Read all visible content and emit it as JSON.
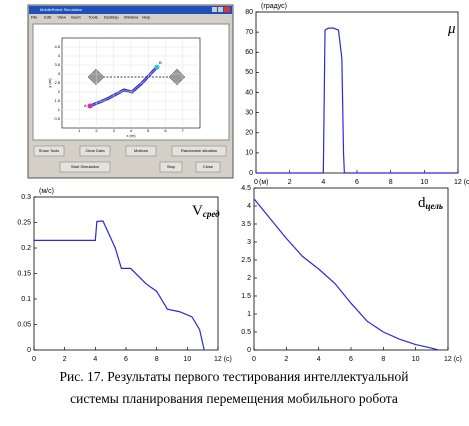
{
  "screenshot": {
    "title": "MobileRobot Simulation",
    "menu": [
      "File",
      "Edit",
      "View",
      "Insert",
      "Tools",
      "Desktop",
      "Window",
      "Help"
    ],
    "plot": {
      "xlabel": "x (m)",
      "ylabel": "y (m)",
      "xticks": [
        "1",
        "2",
        "3",
        "4",
        "5",
        "6",
        "7"
      ],
      "yticks": [
        "0.5",
        "1",
        "1.5",
        "2",
        "2.5",
        "3",
        "3.5",
        "4",
        "4.5"
      ],
      "start": "A",
      "goal": "B"
    },
    "buttons": [
      "Show Tools",
      "Clear Data",
      "Motions",
      "Randomize situation",
      "Start Simulation",
      "Stop",
      "Close"
    ]
  },
  "chart_data": [
    {
      "type": "line",
      "y_label": "(градус)",
      "annotation": "μ",
      "xlim": [
        0,
        12
      ],
      "xticks": [
        0,
        2,
        4,
        6,
        8,
        10,
        {
          "value": 12,
          "label": "12 (с)"
        }
      ],
      "ylim": [
        0,
        80
      ],
      "yticks": [
        0,
        10,
        20,
        30,
        40,
        50,
        60,
        70,
        80
      ],
      "series": [
        {
          "color": "#2a2ad8",
          "x": [
            0,
            4.0,
            4.1,
            4.3,
            4.6,
            4.9,
            5.1,
            5.2,
            5.25,
            12
          ],
          "values": [
            0,
            0,
            71,
            72,
            72,
            71,
            57,
            10,
            0,
            0
          ]
        }
      ]
    },
    {
      "type": "line",
      "y_label": "(м/с)",
      "annotation": "V",
      "annotation_sub": "сред",
      "xlim": [
        0,
        12
      ],
      "xticks": [
        0,
        2,
        4,
        6,
        8,
        10,
        {
          "value": 12,
          "label": "12 (с)"
        }
      ],
      "ylim": [
        0,
        0.3
      ],
      "yticks": [
        0,
        0.05,
        0.1,
        0.15,
        0.2,
        0.25,
        0.3
      ],
      "series": [
        {
          "color": "#2a2ad8",
          "x": [
            0,
            4.0,
            4.1,
            4.5,
            5.3,
            5.7,
            6.3,
            7.3,
            8.0,
            8.7,
            9.5,
            10.3,
            10.8,
            11.1
          ],
          "values": [
            0.215,
            0.215,
            0.252,
            0.253,
            0.2,
            0.16,
            0.16,
            0.13,
            0.115,
            0.08,
            0.075,
            0.065,
            0.04,
            0
          ]
        }
      ]
    },
    {
      "type": "line",
      "y_label": "(м)",
      "annotation": "d",
      "annotation_sub": "цель",
      "xlim": [
        0,
        12
      ],
      "xticks": [
        0,
        2,
        4,
        6,
        8,
        10,
        {
          "value": 12,
          "label": "12 (с)"
        }
      ],
      "ylim": [
        0,
        4.5
      ],
      "yticks": [
        0,
        0.5,
        1,
        1.5,
        2,
        2.5,
        3,
        3.5,
        4,
        4.5
      ],
      "series": [
        {
          "color": "#2a2ad8",
          "x": [
            0,
            1,
            2,
            3,
            4,
            5,
            6,
            7,
            8,
            9,
            10,
            11,
            11.4
          ],
          "values": [
            4.2,
            3.65,
            3.1,
            2.6,
            2.25,
            1.85,
            1.3,
            0.8,
            0.5,
            0.3,
            0.15,
            0.05,
            0
          ]
        }
      ]
    }
  ],
  "caption": [
    "Рис. 17. Результаты первого тестирования интеллектуальной",
    "системы планирования перемещения мобильного робота"
  ]
}
